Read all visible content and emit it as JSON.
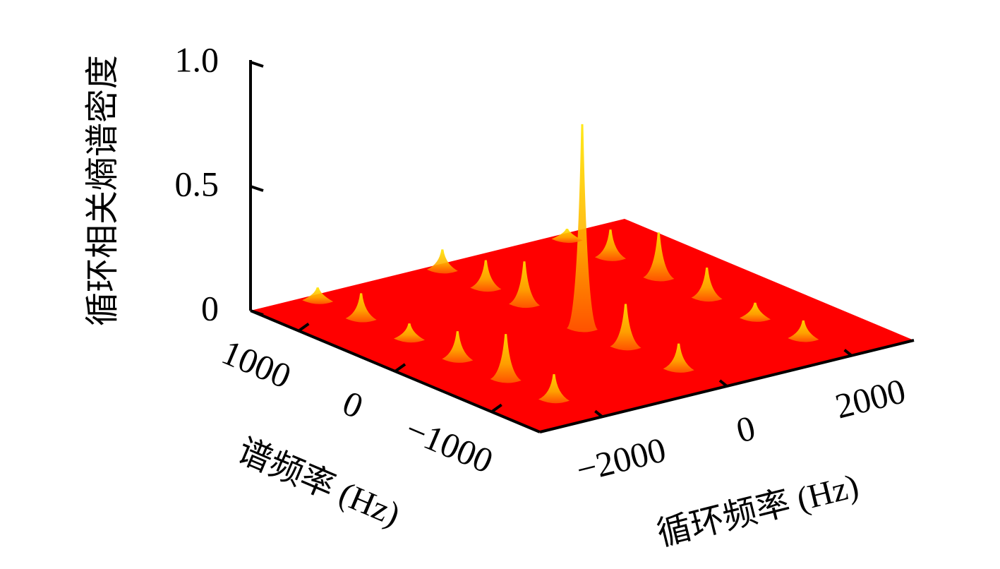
{
  "chart_data": {
    "type": "surface3d",
    "zlabel": "循环相关熵谱密度",
    "xlabel": "循环频率 (Hz)",
    "ylabel": "谱频率 (Hz)",
    "xlim": [
      -3000,
      3000
    ],
    "ylim": [
      -1500,
      1500
    ],
    "zlim": [
      0,
      1
    ],
    "xticks": [
      {
        "value": -2000,
        "label": "−2000"
      },
      0,
      2000
    ],
    "yticks": [
      1000,
      0,
      {
        "value": -1000,
        "label": "−1000"
      }
    ],
    "zticks": [
      0,
      0.5,
      {
        "value": 1,
        "label": "1.0"
      }
    ],
    "surface_color": "#ff0000",
    "peak_color": "#ffd21a",
    "peaks": {
      "x": [
        0,
        0,
        0,
        -2000,
        -2000,
        2000,
        2000,
        2000,
        0,
        -2000,
        0,
        -2000,
        2000,
        2000,
        -2000,
        0,
        -2000,
        2000
      ],
      "y": [
        0,
        600,
        -450,
        -500,
        0,
        500,
        1000,
        0,
        1000,
        1000,
        -1000,
        -1000,
        -1000,
        -500,
        500,
        1450,
        1450,
        1450
      ],
      "z": [
        0.81,
        0.16,
        0.16,
        0.17,
        0.1,
        0.17,
        0.1,
        0.11,
        0.1,
        0.09,
        0.09,
        0.09,
        0.06,
        0.05,
        0.05,
        0.07,
        0.04,
        0.03
      ]
    }
  }
}
